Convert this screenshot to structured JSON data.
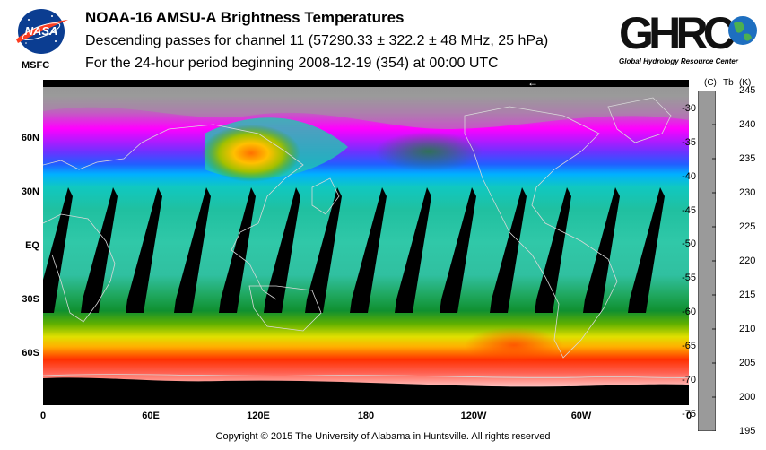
{
  "header": {
    "title": "NOAA-16 AMSU-A Brightness Temperatures",
    "subtitle1": "Descending passes for channel 11 (57290.33 ± 322.2 ± 48 MHz, 25 hPa)",
    "subtitle2": "For the 24-hour period beginning 2008-12-19 (354) at 00:00 UTC"
  },
  "logos": {
    "nasa_text": "NASA",
    "msfc": "MSFC",
    "ghrc_text": "GHRC",
    "ghrc_sub": "Global Hydrology Resource Center"
  },
  "map": {
    "projection": "equirectangular",
    "lat_labels": [
      "60N",
      "30N",
      "EQ",
      "30S",
      "60S"
    ],
    "lon_labels": [
      "0",
      "60E",
      "120E",
      "180",
      "120W",
      "60W",
      "0"
    ],
    "direction_marker": "←",
    "colors": {
      "gap": "#000000",
      "coastline": "#d8d8d8"
    },
    "swath_gaps_lon": [
      5,
      30,
      55,
      82,
      107,
      132,
      155,
      180,
      205,
      230,
      258,
      283,
      310,
      335
    ]
  },
  "colorbar": {
    "unit_c": "(C)",
    "label_tb": "Tb",
    "unit_k": "(K)",
    "celsius_ticks": [
      "-30",
      "-35",
      "-40",
      "-45",
      "-50",
      "-55",
      "-60",
      "-65",
      "-70",
      "-75"
    ],
    "kelvin_ticks": [
      "245",
      "240",
      "235",
      "230",
      "225",
      "220",
      "215",
      "210",
      "205",
      "200",
      "195"
    ],
    "range_k": [
      195,
      245
    ],
    "stops": [
      {
        "k": 195,
        "color": "#9a9a9a"
      },
      {
        "k": 200,
        "color": "#c060c0"
      },
      {
        "k": 205,
        "color": "#ff00ff"
      },
      {
        "k": 210,
        "color": "#3a3aff"
      },
      {
        "k": 213,
        "color": "#00a0ff"
      },
      {
        "k": 216,
        "color": "#00e8e0"
      },
      {
        "k": 219,
        "color": "#30c8a0"
      },
      {
        "k": 222,
        "color": "#10a040"
      },
      {
        "k": 225,
        "color": "#40b000"
      },
      {
        "k": 229,
        "color": "#d0d800"
      },
      {
        "k": 232,
        "color": "#ffc000"
      },
      {
        "k": 236,
        "color": "#ff5000"
      },
      {
        "k": 240,
        "color": "#ff2020"
      },
      {
        "k": 245,
        "color": "#ffffff"
      }
    ]
  },
  "footer": {
    "copyright": "Copyright © 2015 The University of Alabama in Huntsville.  All rights reserved"
  }
}
